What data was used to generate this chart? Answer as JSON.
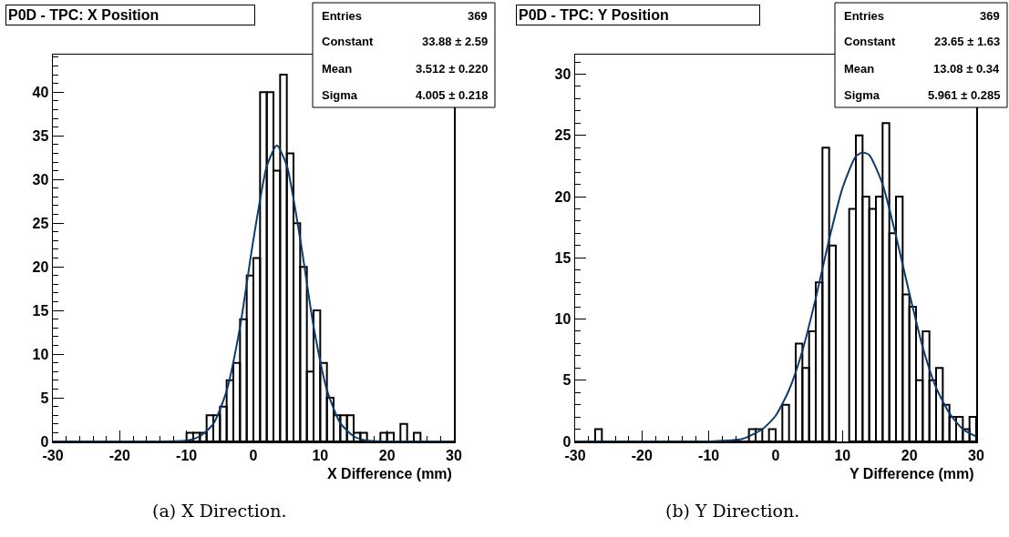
{
  "chart_data": [
    {
      "type": "histogram",
      "title": "P0D - TPC: X Position",
      "xlabel": "X Difference (mm)",
      "bins": [
        -30,
        -29,
        -28,
        -27,
        -26,
        -25,
        -24,
        -23,
        -22,
        -21,
        -20,
        -19,
        -18,
        -17,
        -16,
        -15,
        -14,
        -13,
        -12,
        -11,
        -10,
        -9,
        -8,
        -7,
        -6,
        -5,
        -4,
        -3,
        -2,
        -1,
        0,
        1,
        2,
        3,
        4,
        5,
        6,
        7,
        8,
        9,
        10,
        11,
        12,
        13,
        14,
        15,
        16,
        17,
        18,
        19,
        20,
        21,
        22,
        23,
        24,
        25,
        26,
        27,
        28,
        29,
        30
      ],
      "values": [
        0,
        0,
        0,
        0,
        0,
        0,
        0,
        0,
        0,
        0,
        0,
        0,
        0,
        0,
        0,
        0,
        0,
        0,
        0,
        0,
        1,
        1,
        1,
        3,
        3,
        4,
        7,
        9,
        14,
        19,
        21,
        40,
        40,
        31,
        42,
        33,
        25,
        20,
        8,
        15,
        9,
        5,
        3,
        3,
        3,
        1,
        1,
        0,
        0,
        1,
        1,
        0,
        2,
        0,
        1,
        0,
        0,
        0,
        0,
        0
      ],
      "color": "#000000",
      "series": [
        {
          "type": "line",
          "color": "#0b3d6e",
          "x": [
            -30,
            -20,
            -10,
            -8,
            -6,
            -4,
            -2,
            0,
            2,
            3.5,
            5,
            7,
            9,
            11,
            13,
            15,
            17,
            20,
            30
          ],
          "values": [
            0,
            0,
            0.1,
            0.6,
            2.0,
            5.8,
            13.1,
            23.1,
            31.5,
            33.9,
            31.6,
            23.2,
            13.2,
            5.9,
            2.1,
            0.6,
            0.1,
            0,
            0
          ]
        }
      ],
      "xlim": [
        -30,
        30
      ],
      "xticks": [
        -30,
        -20,
        -10,
        0,
        10,
        20,
        30
      ],
      "ylim": [
        0,
        44.3
      ],
      "yticks": [
        0,
        5,
        10,
        15,
        20,
        25,
        30,
        35,
        40
      ],
      "grid": false,
      "annotations": [
        "Entries 369",
        "Constant 33.88 ± 2.59",
        "Mean 3.512 ± 0.220",
        "Sigma 4.005 ± 0.218",
        "(a) X Direction."
      ]
    },
    {
      "type": "histogram",
      "title": "P0D - TPC: Y Position",
      "xlabel": "Y Difference (mm)",
      "bins": [
        -30,
        -29,
        -28,
        -27,
        -26,
        -25,
        -24,
        -23,
        -22,
        -21,
        -20,
        -19,
        -18,
        -17,
        -16,
        -15,
        -14,
        -13,
        -12,
        -11,
        -10,
        -9,
        -8,
        -7,
        -6,
        -5,
        -4,
        -3,
        -2,
        -1,
        0,
        1,
        2,
        3,
        4,
        5,
        6,
        7,
        8,
        9,
        10,
        11,
        12,
        13,
        14,
        15,
        16,
        17,
        18,
        19,
        20,
        21,
        22,
        23,
        24,
        25,
        26,
        27,
        28,
        29,
        30
      ],
      "values": [
        0,
        0,
        0,
        1,
        0,
        0,
        0,
        0,
        0,
        0,
        0,
        0,
        0,
        0,
        0,
        0,
        0,
        0,
        0,
        0,
        0,
        0,
        0,
        0,
        0,
        0,
        1,
        1,
        0,
        1,
        0,
        3,
        0,
        8,
        6,
        9,
        13,
        24,
        16,
        null,
        null,
        19,
        25,
        20,
        19,
        20,
        26,
        17,
        20,
        12,
        11,
        5,
        9,
        5,
        6,
        3,
        2,
        2,
        1,
        2
      ],
      "color": "#000000",
      "series": [
        {
          "type": "line",
          "color": "#0b3d6e",
          "x": [
            -30,
            -10,
            -5,
            -2,
            0,
            2,
            4,
            6,
            8,
            10,
            12,
            13,
            14,
            16,
            18,
            20,
            22,
            24,
            26,
            28,
            30
          ],
          "values": [
            0,
            0,
            0.2,
            1.0,
            2.1,
            4.2,
            7.4,
            11.7,
            16.5,
            20.7,
            23.3,
            23.6,
            23.4,
            21.0,
            16.8,
            12.1,
            7.7,
            4.4,
            2.3,
            1.0,
            0.4
          ]
        }
      ],
      "xlim": [
        -30,
        30
      ],
      "xticks": [
        -30,
        -20,
        -10,
        0,
        10,
        20,
        30
      ],
      "ylim": [
        0,
        31.6
      ],
      "yticks": [
        0,
        5,
        10,
        15,
        20,
        25,
        30
      ],
      "grid": false,
      "annotations": [
        "Entries 369",
        "Constant 23.65 ± 1.63",
        "Mean 13.08 ± 0.34",
        "Sigma 5.961 ± 0.285",
        "(b) Y Direction."
      ]
    }
  ]
}
